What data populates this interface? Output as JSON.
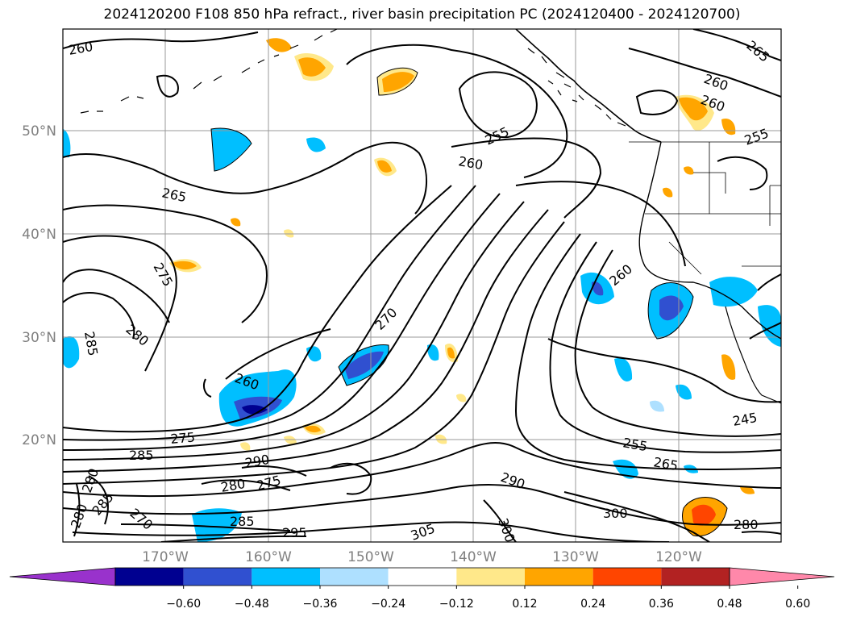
{
  "title": "2024120200 F108 850 hPa refract., river basin precipitation PC (2024120400 - 2024120700)",
  "lat_labels": [
    "50°N",
    "40°N",
    "30°N",
    "20°N"
  ],
  "lon_labels": [
    "170°W",
    "160°W",
    "150°W",
    "140°W",
    "130°W",
    "120°W"
  ],
  "contour_labels": [
    "260",
    "265",
    "275",
    "280",
    "285",
    "260",
    "275",
    "285",
    "280",
    "290",
    "280",
    "280",
    "285",
    "270",
    "285",
    "275",
    "295",
    "270",
    "255",
    "260",
    "305",
    "300",
    "290",
    "300",
    "255",
    "265",
    "260",
    "260",
    "255",
    "260",
    "265",
    "245",
    "280"
  ],
  "colorbar": {
    "colors": [
      "#9932cc",
      "#000090",
      "#3050d0",
      "#00bfff",
      "#aee0ff",
      "#ffffff",
      "#ffe88a",
      "#ffa500",
      "#ff4500",
      "#b22222",
      "#ff88aa"
    ],
    "tick_labels": [
      "−0.60",
      "−0.48",
      "−0.36",
      "−0.24",
      "−0.12",
      "0.12",
      "0.24",
      "0.36",
      "0.48",
      "0.60"
    ]
  },
  "fill_colors": {
    "neg_weak": "#aee0ff",
    "neg_mid": "#00bfff",
    "neg_strong": "#3050d0",
    "neg_max": "#000090",
    "pos_weak": "#ffe88a",
    "pos_mid": "#ffa500",
    "pos_strong": "#ff4500"
  }
}
